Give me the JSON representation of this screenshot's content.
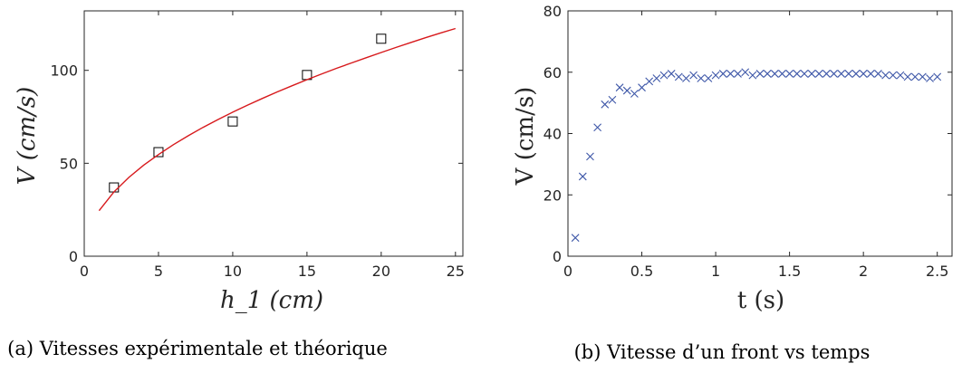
{
  "chart_data": [
    {
      "type": "scatter",
      "title": "",
      "xlabel": "h_1 (cm)",
      "ylabel": "V (cm/s)",
      "xlim": [
        0,
        25.5
      ],
      "ylim": [
        0,
        132
      ],
      "xticks": [
        0,
        5,
        10,
        15,
        20,
        25
      ],
      "yticks": [
        0,
        50,
        100
      ],
      "grid": false,
      "caption": "(a) Vitesses expérimentale et théorique",
      "series": [
        {
          "kind": "scatter",
          "marker": "square",
          "color": "#000000",
          "points": [
            [
              2,
              37
            ],
            [
              5,
              56
            ],
            [
              10,
              72.5
            ],
            [
              15,
              97.5
            ],
            [
              20,
              117
            ]
          ]
        },
        {
          "kind": "line",
          "color": "#d7191c",
          "points": [
            [
              1,
              24.5
            ],
            [
              2,
              34.6
            ],
            [
              3,
              42.4
            ],
            [
              4,
              49
            ],
            [
              5,
              54.7
            ],
            [
              6,
              60
            ],
            [
              7,
              64.8
            ],
            [
              8,
              69.3
            ],
            [
              9,
              73.5
            ],
            [
              10,
              77.5
            ],
            [
              11,
              81.3
            ],
            [
              12,
              84.9
            ],
            [
              13,
              88.4
            ],
            [
              14,
              91.7
            ],
            [
              15,
              95
            ],
            [
              16,
              98.1
            ],
            [
              17,
              101.1
            ],
            [
              18,
              104
            ],
            [
              19,
              106.8
            ],
            [
              20,
              109.6
            ],
            [
              21,
              112.3
            ],
            [
              22,
              115
            ],
            [
              23,
              117.6
            ],
            [
              24,
              120.1
            ],
            [
              25,
              122.5
            ]
          ]
        }
      ]
    },
    {
      "type": "scatter",
      "title": "",
      "xlabel": "t (s)",
      "ylabel": "V (cm/s)",
      "xlim": [
        0,
        2.6
      ],
      "ylim": [
        0,
        80
      ],
      "xticks": [
        0,
        0.5,
        1,
        1.5,
        2,
        2.5
      ],
      "yticks": [
        0,
        20,
        40,
        60,
        80
      ],
      "grid": false,
      "caption": "(b) Vitesse d’un front vs temps",
      "series": [
        {
          "kind": "scatter",
          "marker": "x",
          "color": "#3e57a8",
          "points": [
            [
              0.05,
              6
            ],
            [
              0.1,
              26
            ],
            [
              0.15,
              32.5
            ],
            [
              0.2,
              42
            ],
            [
              0.25,
              49.5
            ],
            [
              0.3,
              51
            ],
            [
              0.35,
              55
            ],
            [
              0.4,
              54
            ],
            [
              0.45,
              53
            ],
            [
              0.5,
              55
            ],
            [
              0.55,
              57
            ],
            [
              0.6,
              58
            ],
            [
              0.65,
              59
            ],
            [
              0.7,
              59.5
            ],
            [
              0.75,
              58.5
            ],
            [
              0.8,
              58
            ],
            [
              0.85,
              59
            ],
            [
              0.9,
              58
            ],
            [
              0.95,
              58
            ],
            [
              1.0,
              59
            ],
            [
              1.05,
              59.5
            ],
            [
              1.1,
              59.5
            ],
            [
              1.15,
              59.5
            ],
            [
              1.2,
              60
            ],
            [
              1.25,
              59
            ],
            [
              1.3,
              59.5
            ],
            [
              1.35,
              59.5
            ],
            [
              1.4,
              59.5
            ],
            [
              1.45,
              59.5
            ],
            [
              1.5,
              59.5
            ],
            [
              1.55,
              59.5
            ],
            [
              1.6,
              59.5
            ],
            [
              1.65,
              59.5
            ],
            [
              1.7,
              59.5
            ],
            [
              1.75,
              59.5
            ],
            [
              1.8,
              59.5
            ],
            [
              1.85,
              59.5
            ],
            [
              1.9,
              59.5
            ],
            [
              1.95,
              59.5
            ],
            [
              2.0,
              59.5
            ],
            [
              2.05,
              59.5
            ],
            [
              2.1,
              59.5
            ],
            [
              2.15,
              59
            ],
            [
              2.2,
              59
            ],
            [
              2.25,
              59
            ],
            [
              2.3,
              58.5
            ],
            [
              2.35,
              58.5
            ],
            [
              2.4,
              58.5
            ],
            [
              2.45,
              58
            ],
            [
              2.5,
              58.5
            ]
          ]
        }
      ]
    }
  ]
}
